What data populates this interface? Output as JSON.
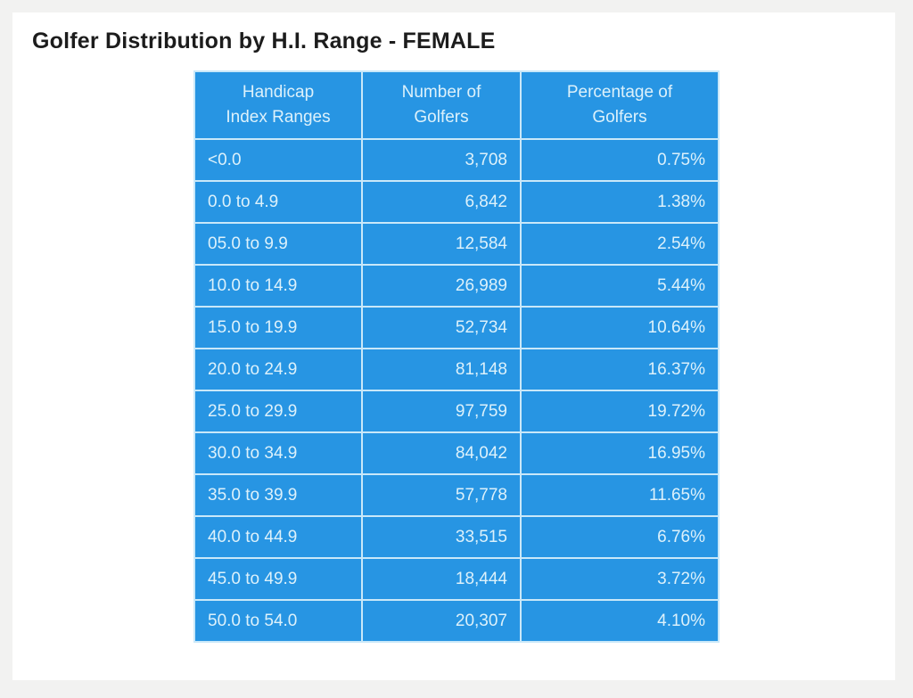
{
  "page_title": "Golfer Distribution by H.I. Range - FEMALE",
  "colors": {
    "page_background": "#F2F2F1",
    "card_background": "#FFFFFF",
    "table_blue": "#2795E3",
    "grid_line": "#C9E8F9",
    "cell_text": "#DCF1FB",
    "title_text": "#1C1C1C"
  },
  "table": {
    "headers": [
      {
        "line1": "Handicap",
        "line2": "Index Ranges"
      },
      {
        "line1": "Number of",
        "line2": "Golfers"
      },
      {
        "line1": "Percentage of",
        "line2": "Golfers"
      }
    ]
  },
  "chart_data": {
    "type": "table",
    "title": "Golfer Distribution by H.I. Range - FEMALE",
    "columns": [
      "Handicap Index Ranges",
      "Number of Golfers",
      "Percentage of Golfers"
    ],
    "rows": [
      [
        "<0.0",
        "3,708",
        "0.75%"
      ],
      [
        "0.0 to 4.9",
        "6,842",
        "1.38%"
      ],
      [
        "05.0 to 9.9",
        "12,584",
        "2.54%"
      ],
      [
        "10.0 to 14.9",
        "26,989",
        "5.44%"
      ],
      [
        "15.0 to 19.9",
        "52,734",
        "10.64%"
      ],
      [
        "20.0 to 24.9",
        "81,148",
        "16.37%"
      ],
      [
        "25.0 to 29.9",
        "97,759",
        "19.72%"
      ],
      [
        "30.0 to 34.9",
        "84,042",
        "16.95%"
      ],
      [
        "35.0 to 39.9",
        "57,778",
        "11.65%"
      ],
      [
        "40.0 to 44.9",
        "33,515",
        "6.76%"
      ],
      [
        "45.0 to 49.9",
        "18,444",
        "3.72%"
      ],
      [
        "50.0 to 54.0",
        "20,307",
        "4.10%"
      ]
    ]
  }
}
